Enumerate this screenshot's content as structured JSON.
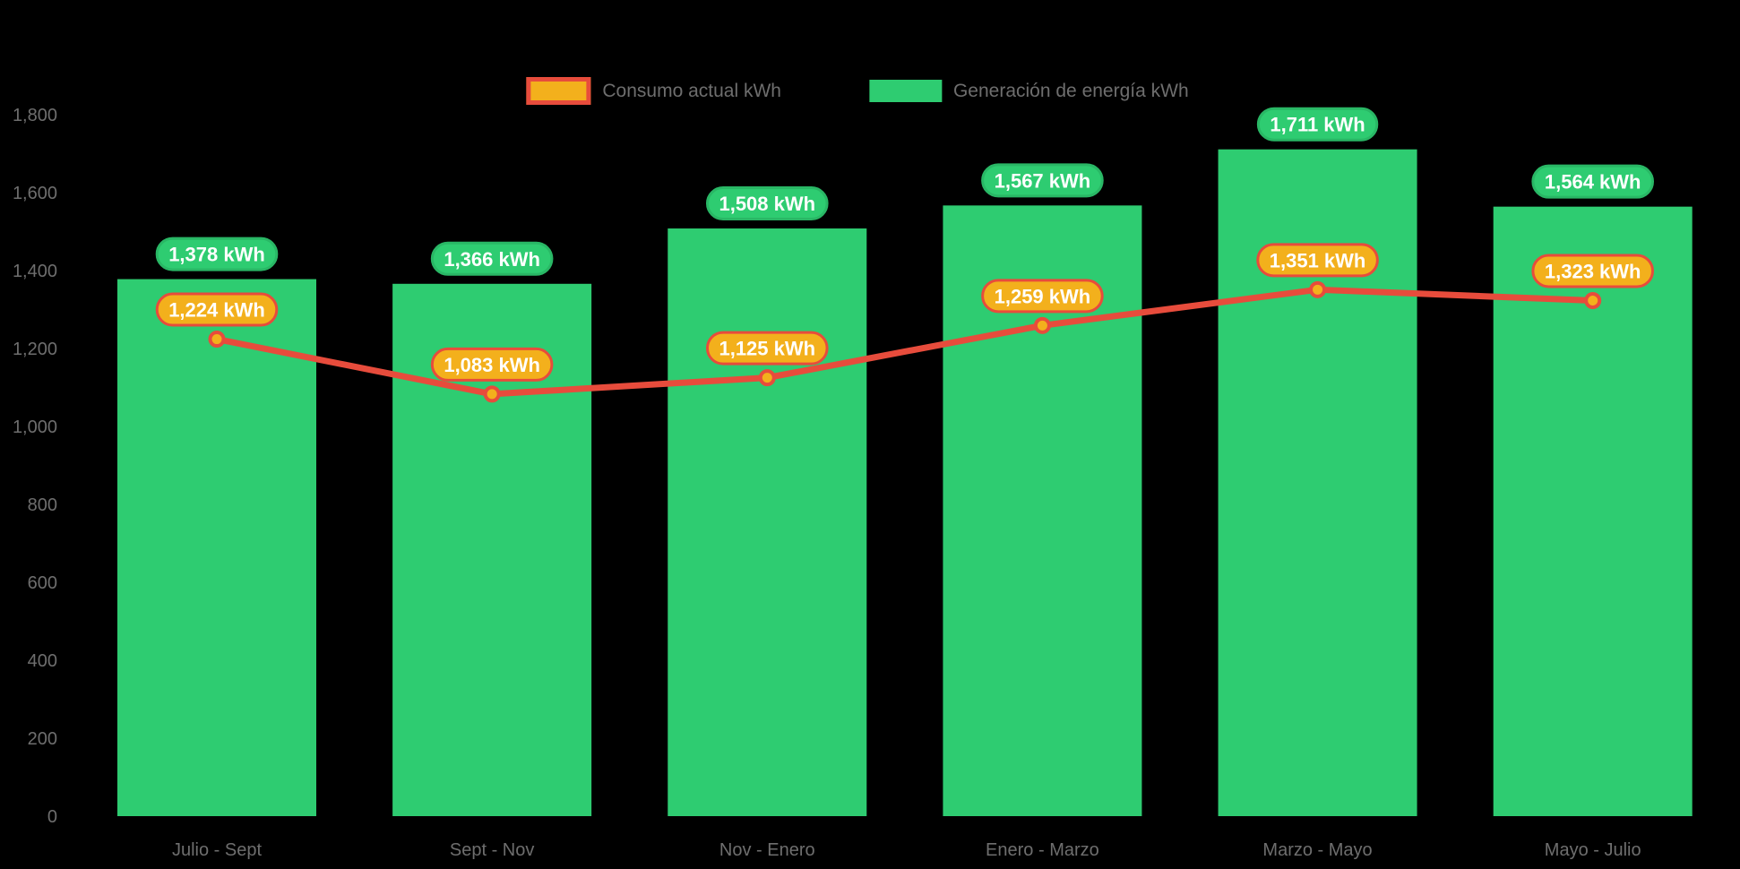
{
  "page": {
    "background": "#000000"
  },
  "chart_data": {
    "type": "bar+line",
    "title": "",
    "categories": [
      "Julio - Sept",
      "Sept - Nov",
      "Nov - Enero",
      "Enero - Marzo",
      "Marzo - Mayo",
      "Mayo - Julio"
    ],
    "series": [
      {
        "name": "Consumo actual kWh",
        "type": "line",
        "values": [
          1224,
          1083,
          1125,
          1259,
          1351,
          1323
        ],
        "color": "#e74c3c",
        "marker_fill": "#f3b01c",
        "label_bg": "#f3b01c",
        "label_border": "#e74c3c"
      },
      {
        "name": "Generación de energía kWh",
        "type": "bar",
        "values": [
          1378,
          1366,
          1508,
          1567,
          1711,
          1564
        ],
        "color": "#2ecc71",
        "label_bg": "#2ecc71",
        "label_border": "#29b765"
      }
    ],
    "value_suffix": " kWh",
    "label_text_color": "#ffffff",
    "ylim": [
      0,
      1800
    ],
    "ytick_step": 200,
    "y_tick_labels": [
      "0",
      "200",
      "400",
      "600",
      "800",
      "1,000",
      "1,200",
      "1,400",
      "1,600",
      "1,800"
    ],
    "grid": false,
    "legend_position": "top-center",
    "axis_text_color": "#6e6e6e",
    "background": "#000000"
  }
}
